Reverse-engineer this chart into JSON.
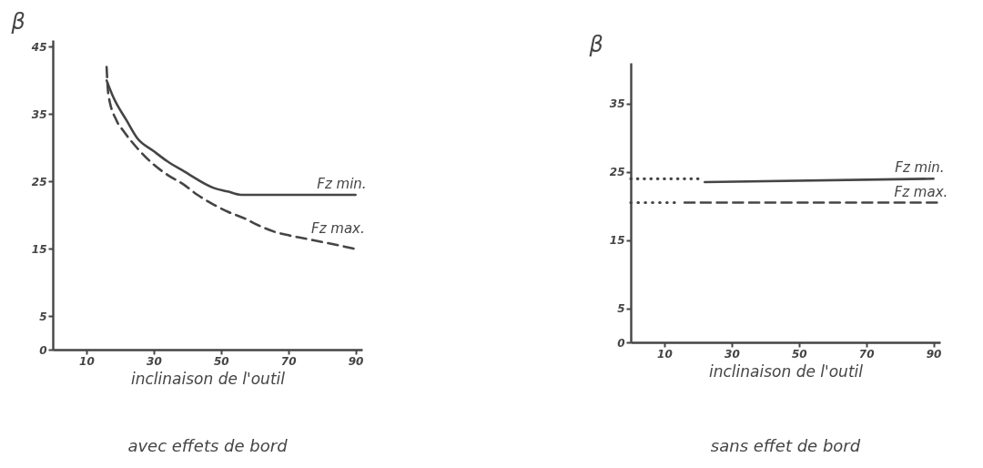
{
  "chart_data": [
    {
      "type": "line",
      "title": "avec effets de bord",
      "xlabel": "inclinaison de l'outil",
      "ylabel": "β",
      "xlim": [
        0,
        92
      ],
      "ylim": [
        0,
        46
      ],
      "xticks": [
        10,
        30,
        50,
        70,
        90
      ],
      "yticks": [
        0,
        5,
        15,
        25,
        35,
        45
      ],
      "series": [
        {
          "name": "Fz min.",
          "color": "#454545",
          "line_style": "solid",
          "x": [
            16,
            18,
            22,
            25,
            30,
            34,
            39,
            48,
            52,
            56,
            70,
            90
          ],
          "values": [
            40,
            37.5,
            34,
            31.5,
            29.5,
            28,
            26.5,
            24,
            23.5,
            23,
            23,
            23
          ]
        },
        {
          "name": "Fz max.",
          "color": "#454545",
          "line_style": "dashed",
          "x": [
            16,
            16.5,
            19,
            21,
            25,
            30,
            34,
            39,
            43,
            48,
            52,
            57,
            61,
            66,
            70,
            75,
            80,
            85,
            89.5
          ],
          "values": [
            42,
            38,
            34,
            32.5,
            30,
            27.5,
            26,
            24.5,
            23,
            21.5,
            20.5,
            19.5,
            18.5,
            17.5,
            17,
            16.5,
            16,
            15.5,
            15
          ]
        }
      ]
    },
    {
      "type": "line",
      "title": "sans effet de bord",
      "xlabel": "inclinaison de l'outil",
      "ylabel": "β",
      "xlim": [
        0,
        92
      ],
      "ylim": [
        0,
        41
      ],
      "xticks": [
        10,
        30,
        50,
        70,
        90
      ],
      "yticks": [
        0,
        5,
        15,
        25,
        35
      ],
      "series": [
        {
          "color": "#454545",
          "line_style": "dotted",
          "x": [
            0,
            20
          ],
          "values": [
            24,
            24
          ]
        },
        {
          "name": "Fz min.",
          "color": "#454545",
          "line_style": "solid",
          "x": [
            22,
            90
          ],
          "values": [
            23.5,
            24
          ]
        },
        {
          "color": "#454545",
          "line_style": "dotted",
          "x": [
            0,
            13
          ],
          "values": [
            20.5,
            20.5
          ]
        },
        {
          "name": "Fz max.",
          "color": "#454545",
          "line_style": "dashed",
          "x": [
            16,
            91
          ],
          "values": [
            20.5,
            20.5
          ]
        }
      ]
    }
  ]
}
